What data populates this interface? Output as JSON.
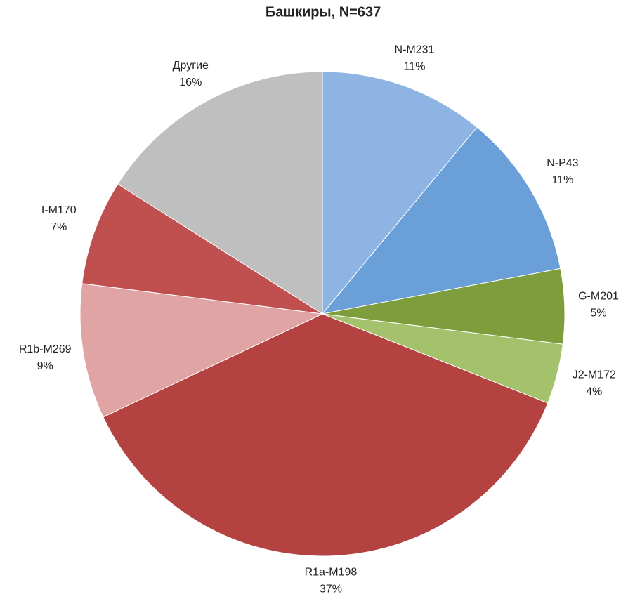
{
  "chart_data": {
    "type": "pie",
    "title": "Башкиры, N=637",
    "categories": [
      "N-M231",
      "N-P43",
      "G-M201",
      "J2-M172",
      "R1a-M198",
      "R1b-M269",
      "I-M170",
      "Другие"
    ],
    "values": [
      11,
      11,
      5,
      4,
      37,
      9,
      7,
      16
    ],
    "value_labels": [
      "11%",
      "11%",
      "5%",
      "4%",
      "37%",
      "9%",
      "7%",
      "16%"
    ],
    "colors": [
      "#8eb4e3",
      "#6a9fd8",
      "#7e9e3e",
      "#a4c26b",
      "#b34240",
      "#e1a4a4",
      "#c0504f",
      "#bfbfbf"
    ]
  }
}
